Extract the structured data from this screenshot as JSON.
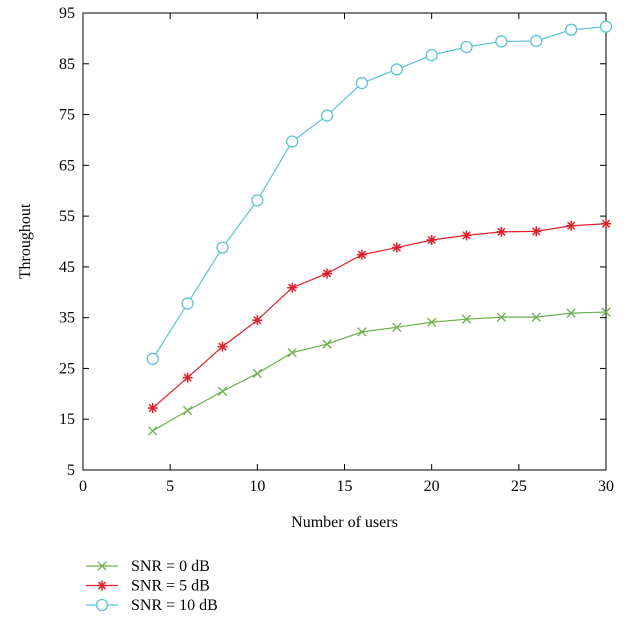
{
  "chart_data": {
    "type": "line",
    "title": "",
    "xlabel": "Number of users",
    "ylabel": "Throughout",
    "xlim": [
      0,
      30
    ],
    "ylim": [
      5,
      95
    ],
    "x_ticks": [
      0,
      5,
      10,
      15,
      20,
      25,
      30
    ],
    "y_ticks": [
      5,
      15,
      25,
      35,
      45,
      55,
      65,
      75,
      85,
      95
    ],
    "grid": false,
    "legend_position": "bottom-left, below plot",
    "x": [
      4,
      6,
      8,
      10,
      12,
      14,
      16,
      18,
      20,
      22,
      24,
      26,
      28,
      30
    ],
    "series": [
      {
        "name": "SNR = 0 dB",
        "color": "#6ab04c",
        "marker": "x",
        "values": [
          12.7,
          16.7,
          20.5,
          24.0,
          28.1,
          29.8,
          32.2,
          33.1,
          34.1,
          34.7,
          35.1,
          35.1,
          35.9,
          36.1
        ]
      },
      {
        "name": "SNR = 5 dB",
        "color": "#e0202a",
        "marker": "asterisk",
        "values": [
          17.2,
          23.2,
          29.3,
          34.5,
          40.9,
          43.7,
          47.4,
          48.8,
          50.3,
          51.2,
          51.9,
          52.0,
          53.1,
          53.5
        ]
      },
      {
        "name": "SNR = 10 dB",
        "color": "#5bc4d6",
        "marker": "circle",
        "values": [
          26.9,
          37.8,
          48.8,
          58.1,
          69.7,
          74.8,
          81.2,
          83.9,
          86.7,
          88.3,
          89.4,
          89.5,
          91.7,
          92.3
        ]
      }
    ]
  }
}
